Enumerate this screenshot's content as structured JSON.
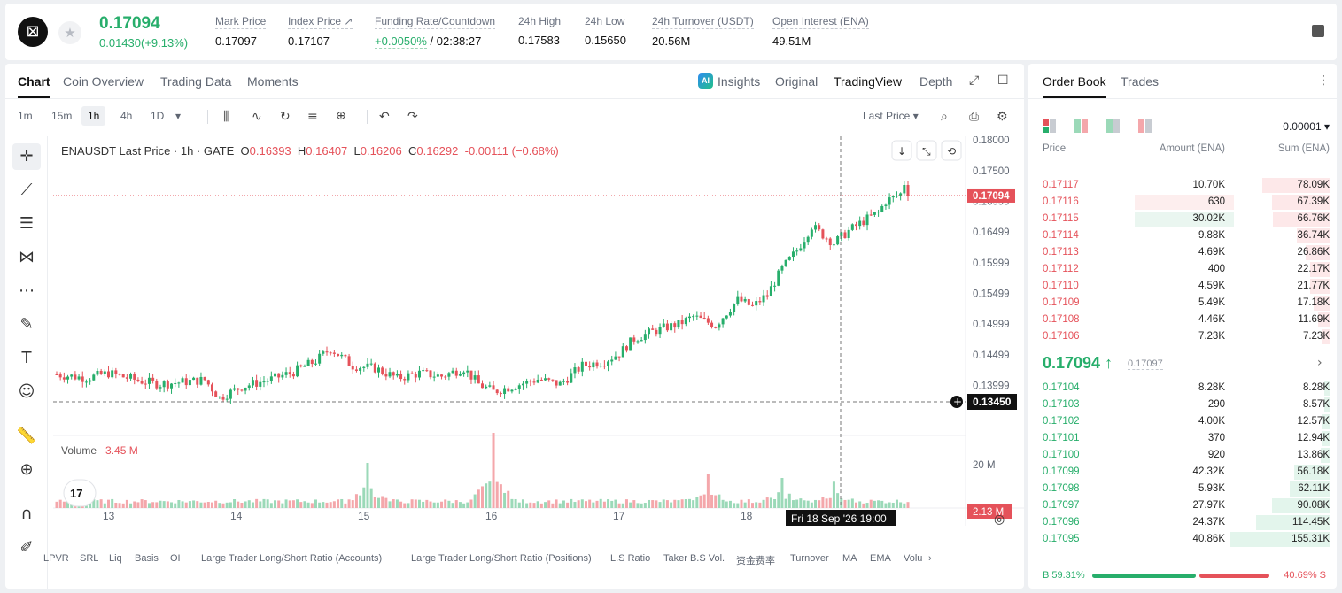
{
  "ticker": {
    "logo_glyph": "⊠",
    "favorite_icon": "star-icon",
    "last_price": "0.17094",
    "change": "0.01430(+9.13%)",
    "stats": [
      {
        "label": "Mark Price",
        "value": "0.17097"
      },
      {
        "label": "Index Price ↗",
        "value": "0.17107"
      },
      {
        "label": "Funding Rate/Countdown",
        "value_green": "+0.0050%",
        "value": " / 02:38:27"
      },
      {
        "label": "24h High",
        "value": "0.17583"
      },
      {
        "label": "24h Low",
        "value": "0.15650"
      },
      {
        "label": "24h Turnover (USDT)",
        "value": "20.56M"
      },
      {
        "label": "Open Interest (ENA)",
        "value": "49.51M"
      }
    ]
  },
  "chart_tabs": {
    "items": [
      "Chart",
      "Coin Overview",
      "Trading Data",
      "Moments"
    ],
    "views": [
      "Insights",
      "Original",
      "TradingView",
      "Depth"
    ],
    "ai_badge": "AI"
  },
  "toolbar": {
    "intervals": [
      "1m",
      "15m",
      "1h",
      "4h",
      "1D"
    ],
    "dropdown_glyph": "▾",
    "price_type": "Last Price ▾"
  },
  "legend": {
    "symbol": "ENAUSDT Last Price · 1h · GATE",
    "open_label": "O",
    "open": "0.16393",
    "high_label": "H",
    "high": "0.16407",
    "low_label": "L",
    "low": "0.16206",
    "close_label": "C",
    "close": "0.16292",
    "chg": "-0.00111 (−0.68%)"
  },
  "volume_legend": {
    "label": "Volume",
    "value": "3.45 M"
  },
  "crosshair": {
    "time_label": "Fri 18 Sep '26   19:00",
    "price_label": "0.13450"
  },
  "bottom_indicators": [
    "LPVR",
    "SRL",
    "Liq",
    "Basis",
    "OI",
    "Large Trader Long/Short Ratio (Accounts)",
    "Large Trader Long/Short Ratio (Positions)",
    "L.S Ratio",
    "Taker B.S Vol.",
    "资金费率",
    "Turnover",
    "MA",
    "EMA",
    "Volu"
  ],
  "chart_data": {
    "type": "candlestick",
    "y_ticks": [
      "0.18000",
      "0.17500",
      "0.16999",
      "0.16499",
      "0.15999",
      "0.15499",
      "0.14999",
      "0.14499",
      "0.13999"
    ],
    "ylim": [
      0.133,
      0.1806
    ],
    "x_ticks": [
      "13",
      "14",
      "15",
      "16",
      "17",
      "18"
    ],
    "last_price_label": "0.17094",
    "volume_axis_label": "20 M",
    "volume_last_label": "2.13 M",
    "close_waypoints": [
      [
        0,
        0.1418
      ],
      [
        8,
        0.1412
      ],
      [
        14,
        0.142
      ],
      [
        22,
        0.1408
      ],
      [
        28,
        0.1402
      ],
      [
        40,
        0.1409
      ],
      [
        44,
        0.138
      ],
      [
        50,
        0.1398
      ],
      [
        58,
        0.141
      ],
      [
        64,
        0.1422
      ],
      [
        70,
        0.144
      ],
      [
        74,
        0.146
      ],
      [
        80,
        0.1432
      ],
      [
        86,
        0.1428
      ],
      [
        92,
        0.1412
      ],
      [
        98,
        0.142
      ],
      [
        104,
        0.1415
      ],
      [
        110,
        0.1428
      ],
      [
        114,
        0.1402
      ],
      [
        118,
        0.139
      ],
      [
        124,
        0.14
      ],
      [
        130,
        0.141
      ],
      [
        136,
        0.1402
      ],
      [
        142,
        0.1432
      ],
      [
        148,
        0.144
      ],
      [
        152,
        0.1452
      ],
      [
        156,
        0.1476
      ],
      [
        162,
        0.149
      ],
      [
        168,
        0.15
      ],
      [
        172,
        0.1512
      ],
      [
        178,
        0.1498
      ],
      [
        184,
        0.154
      ],
      [
        188,
        0.1528
      ],
      [
        192,
        0.1548
      ],
      [
        196,
        0.159
      ],
      [
        200,
        0.162
      ],
      [
        204,
        0.166
      ],
      [
        206,
        0.165
      ],
      [
        210,
        0.1632
      ],
      [
        214,
        0.1652
      ],
      [
        218,
        0.1668
      ],
      [
        222,
        0.1682
      ],
      [
        224,
        0.17
      ],
      [
        228,
        0.1712
      ],
      [
        229,
        0.173
      ],
      [
        230,
        0.1709
      ]
    ],
    "volume_peaks": [
      [
        84,
        0.6
      ],
      [
        118,
        1.0
      ],
      [
        176,
        0.45
      ],
      [
        196,
        0.4
      ],
      [
        210,
        0.35
      ]
    ]
  },
  "orderbook": {
    "tabs": [
      "Order Book",
      "Trades"
    ],
    "precision": "0.00001 ▾",
    "headers": {
      "price": "Price",
      "amount": "Amount (ENA)",
      "sum": "Sum (ENA)"
    },
    "asks": [
      {
        "price": "0.17117",
        "amount": "10.70K",
        "sum": "78.09K",
        "depth": 0.68,
        "amt_frac": 0.0
      },
      {
        "price": "0.17116",
        "amount": "630",
        "sum": "67.39K",
        "depth": 0.58,
        "amt_frac": 0.62
      },
      {
        "price": "0.17115",
        "amount": "30.02K",
        "sum": "66.76K",
        "depth": 0.57,
        "amt_frac": 0.62
      },
      {
        "price": "0.17114",
        "amount": "9.88K",
        "sum": "36.74K",
        "depth": 0.33,
        "amt_frac": 0.0
      },
      {
        "price": "0.17113",
        "amount": "4.69K",
        "sum": "26.86K",
        "depth": 0.24,
        "amt_frac": 0.0
      },
      {
        "price": "0.17112",
        "amount": "400",
        "sum": "22.17K",
        "depth": 0.2,
        "amt_frac": 0.0
      },
      {
        "price": "0.17110",
        "amount": "4.59K",
        "sum": "21.77K",
        "depth": 0.2,
        "amt_frac": 0.0
      },
      {
        "price": "0.17109",
        "amount": "5.49K",
        "sum": "17.18K",
        "depth": 0.16,
        "amt_frac": 0.0
      },
      {
        "price": "0.17108",
        "amount": "4.46K",
        "sum": "11.69K",
        "depth": 0.12,
        "amt_frac": 0.0
      },
      {
        "price": "0.17106",
        "amount": "7.23K",
        "sum": "7.23K",
        "depth": 0.08,
        "amt_frac": 0.0
      }
    ],
    "mid_price": "0.17094 ↑",
    "mid_mark": "0.17097",
    "bids": [
      {
        "price": "0.17104",
        "amount": "8.28K",
        "sum": "8.28K",
        "depth": 0.05
      },
      {
        "price": "0.17103",
        "amount": "290",
        "sum": "8.57K",
        "depth": 0.05
      },
      {
        "price": "0.17102",
        "amount": "4.00K",
        "sum": "12.57K",
        "depth": 0.08
      },
      {
        "price": "0.17101",
        "amount": "370",
        "sum": "12.94K",
        "depth": 0.08
      },
      {
        "price": "0.17100",
        "amount": "920",
        "sum": "13.86K",
        "depth": 0.09
      },
      {
        "price": "0.17099",
        "amount": "42.32K",
        "sum": "56.18K",
        "depth": 0.36
      },
      {
        "price": "0.17098",
        "amount": "5.93K",
        "sum": "62.11K",
        "depth": 0.4
      },
      {
        "price": "0.17097",
        "amount": "27.97K",
        "sum": "90.08K",
        "depth": 0.58
      },
      {
        "price": "0.17096",
        "amount": "24.37K",
        "sum": "114.45K",
        "depth": 0.74
      },
      {
        "price": "0.17095",
        "amount": "40.86K",
        "sum": "155.31K",
        "depth": 1.0
      }
    ],
    "buy_ratio_label": "B 59.31%",
    "sell_ratio_label": "40.69% S",
    "buy_ratio": 0.5931
  },
  "colors": {
    "up": "#27ae6b",
    "down": "#e5525a",
    "up_vol": "#9bd9b8",
    "down_vol": "#f4a7ab"
  }
}
